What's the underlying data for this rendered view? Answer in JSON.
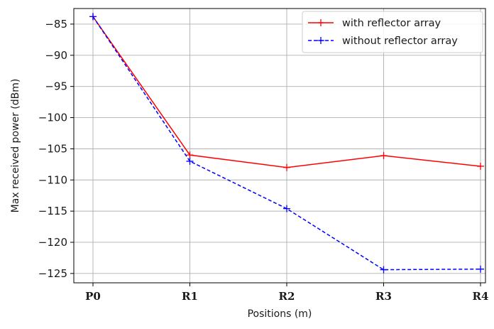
{
  "chart_data": {
    "type": "line",
    "categories": [
      "P0",
      "R1",
      "R2",
      "R3",
      "R4"
    ],
    "series": [
      {
        "name": "with reflector array",
        "values": [
          -83.8,
          -106.0,
          -108.0,
          -106.1,
          -107.8
        ],
        "color": "#ff0000",
        "line_style": "solid",
        "marker": "+"
      },
      {
        "name": "without reflector array",
        "values": [
          -83.8,
          -107.0,
          -114.6,
          -124.4,
          -124.3
        ],
        "color": "#0000ff",
        "line_style": "dashed",
        "marker": "+"
      }
    ],
    "xlabel": "Positions (m)",
    "ylabel": "Max received power (dBm)",
    "ylim": [
      -126.5,
      -82.5
    ],
    "yticks": [
      -85,
      -90,
      -95,
      -100,
      -105,
      -110,
      -115,
      -120,
      -125
    ],
    "grid": true,
    "legend_position": "top-right"
  }
}
